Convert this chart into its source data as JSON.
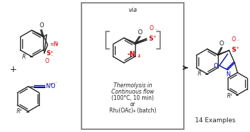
{
  "bg_color": "#ffffff",
  "box_color": "#777777",
  "black": "#222222",
  "red": "#cc0000",
  "blue": "#0000bb",
  "via_text": "via",
  "minus_n2_1": "-N",
  "minus_n2_2": "2",
  "thermo_line1": "Thermolysis in",
  "thermo_line2": "Continuous flow",
  "thermo_line3": "(100°C, 10 min)",
  "or_text": "or",
  "rh_text": "Rh",
  "rh_sub": "2",
  "rh_rest": "(OAc)",
  "rh_sub2": "4",
  "rh_end": " (batch)",
  "examples_text": "14 Examples"
}
